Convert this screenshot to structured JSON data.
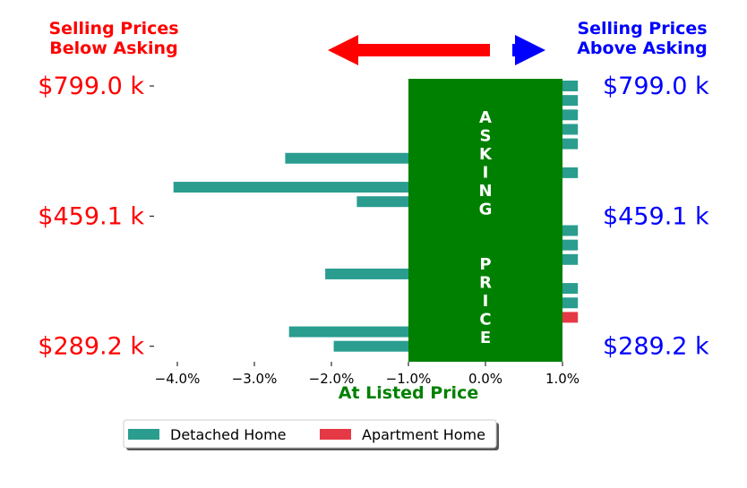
{
  "chart_data": {
    "type": "bar",
    "orientation": "horizontal",
    "header_left": [
      "Selling Prices",
      "Below Asking"
    ],
    "header_right": [
      "Selling Prices",
      "Above Asking"
    ],
    "xlabel": "At Listed Price",
    "xlim": [
      -4.3,
      1.0
    ],
    "x_ticks": [
      -4.0,
      -3.0,
      -2.0,
      -1.0,
      0.0,
      1.0
    ],
    "x_tick_labels": [
      "−4.0%",
      "−3.0%",
      "−2.0%",
      "−1.0%",
      "0.0%",
      "1.0%"
    ],
    "y_tick_labels_left": [
      "$799.0 k",
      "$459.1 k",
      "$289.2 k"
    ],
    "y_tick_labels_right": [
      "$799.0 k",
      "$459.1 k",
      "$289.2 k"
    ],
    "center_band": {
      "from": -1.0,
      "to": 1.0,
      "label": "ASKING  PRICE"
    },
    "series": [
      {
        "name": "Detached Home",
        "color": "#2a9d8f"
      },
      {
        "name": "Apartment Home",
        "color": "#e63946"
      }
    ],
    "bars": [
      {
        "row": 0,
        "value": 1.2,
        "series": 0
      },
      {
        "row": 1,
        "value": 1.2,
        "series": 0
      },
      {
        "row": 2,
        "value": 1.2,
        "series": 0
      },
      {
        "row": 3,
        "value": 1.2,
        "series": 0
      },
      {
        "row": 4,
        "value": 1.2,
        "series": 0
      },
      {
        "row": 5,
        "value": -2.6,
        "series": 0
      },
      {
        "row": 6,
        "value": 1.2,
        "series": 0
      },
      {
        "row": 7,
        "value": -4.05,
        "series": 0
      },
      {
        "row": 8,
        "value": -1.67,
        "series": 0
      },
      {
        "row": 10,
        "value": 1.2,
        "series": 0
      },
      {
        "row": 11,
        "value": 1.2,
        "series": 0
      },
      {
        "row": 12,
        "value": 1.2,
        "series": 0
      },
      {
        "row": 13,
        "value": -2.08,
        "series": 0
      },
      {
        "row": 14,
        "value": 1.2,
        "series": 0
      },
      {
        "row": 15,
        "value": 1.2,
        "series": 0
      },
      {
        "row": 16,
        "value": 1.2,
        "series": 1
      },
      {
        "row": 17,
        "value": -2.55,
        "series": 0
      },
      {
        "row": 18,
        "value": -1.97,
        "series": 0
      }
    ],
    "colors": {
      "left_text": "#ff0000",
      "right_text": "#0000ff",
      "band": "#008000",
      "xlabel": "#008000",
      "arrow_left": "#ff0000",
      "arrow_right": "#0000ff"
    }
  }
}
